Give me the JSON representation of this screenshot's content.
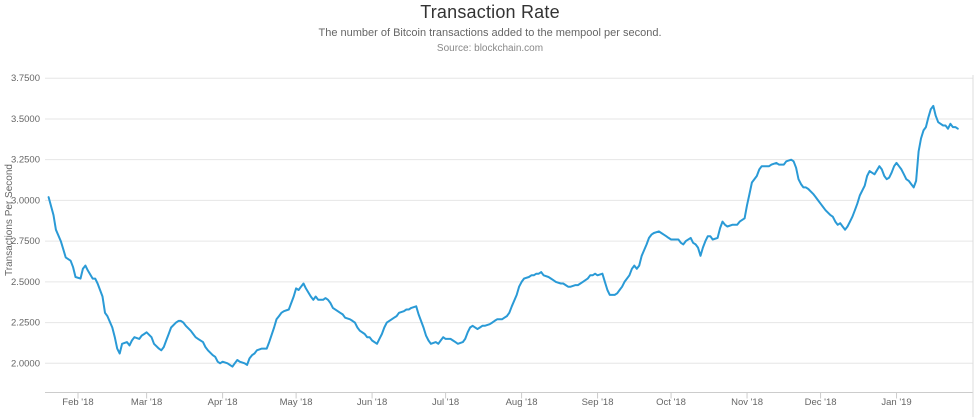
{
  "page": {
    "background": "#ffffff"
  },
  "chart_data": {
    "type": "line",
    "title": "Transaction Rate",
    "subtitle": "The number of Bitcoin transactions added to the mempool per second.",
    "source": "Source: blockchain.com",
    "ylabel": "Transactions Per Second",
    "xlabel": "",
    "legend": "none",
    "grid": "horizontal",
    "colors": {
      "series": "#2a9ad6",
      "gridline": "#e6e6e6",
      "axis_line": "#cccccc",
      "tick_label": "#666666",
      "title": "#333333",
      "subtitle": "#666666",
      "source": "#888888",
      "right_border": "#dddddd"
    },
    "ylim": [
      1.82,
      3.86
    ],
    "y_ticks": [
      "2.0000",
      "2.2500",
      "2.5000",
      "2.7500",
      "3.0000",
      "3.2500",
      "3.5000",
      "3.7500"
    ],
    "x_ticks": [
      {
        "label": "Feb '18",
        "date": "2018-02-01"
      },
      {
        "label": "Mar '18",
        "date": "2018-03-01"
      },
      {
        "label": "Apr '18",
        "date": "2018-04-01"
      },
      {
        "label": "May '18",
        "date": "2018-05-01"
      },
      {
        "label": "Jun '18",
        "date": "2018-06-01"
      },
      {
        "label": "Jul '18",
        "date": "2018-07-01"
      },
      {
        "label": "Aug '18",
        "date": "2018-08-01"
      },
      {
        "label": "Sep '18",
        "date": "2018-09-01"
      },
      {
        "label": "Oct '18",
        "date": "2018-10-01"
      },
      {
        "label": "Nov '18",
        "date": "2018-11-01"
      },
      {
        "label": "Dec '18",
        "date": "2018-12-01"
      },
      {
        "label": "Jan '19",
        "date": "2019-01-01"
      }
    ],
    "points": [
      [
        "2018-01-20",
        3.02
      ],
      [
        "2018-01-22",
        2.91
      ],
      [
        "2018-01-23",
        2.82
      ],
      [
        "2018-01-25",
        2.75
      ],
      [
        "2018-01-26",
        2.7
      ],
      [
        "2018-01-27",
        2.65
      ],
      [
        "2018-01-29",
        2.63
      ],
      [
        "2018-01-30",
        2.59
      ],
      [
        "2018-01-31",
        2.53
      ],
      [
        "2018-02-02",
        2.52
      ],
      [
        "2018-02-03",
        2.58
      ],
      [
        "2018-02-04",
        2.6
      ],
      [
        "2018-02-05",
        2.57
      ],
      [
        "2018-02-07",
        2.52
      ],
      [
        "2018-02-08",
        2.52
      ],
      [
        "2018-02-09",
        2.49
      ],
      [
        "2018-02-11",
        2.41
      ],
      [
        "2018-02-12",
        2.31
      ],
      [
        "2018-02-13",
        2.29
      ],
      [
        "2018-02-15",
        2.22
      ],
      [
        "2018-02-16",
        2.16
      ],
      [
        "2018-02-17",
        2.09
      ],
      [
        "2018-02-18",
        2.06
      ],
      [
        "2018-02-19",
        2.12
      ],
      [
        "2018-02-21",
        2.13
      ],
      [
        "2018-02-22",
        2.11
      ],
      [
        "2018-02-23",
        2.14
      ],
      [
        "2018-02-24",
        2.16
      ],
      [
        "2018-02-26",
        2.15
      ],
      [
        "2018-02-27",
        2.17
      ],
      [
        "2018-02-28",
        2.18
      ],
      [
        "2018-03-01",
        2.19
      ],
      [
        "2018-03-03",
        2.16
      ],
      [
        "2018-03-04",
        2.12
      ],
      [
        "2018-03-06",
        2.09
      ],
      [
        "2018-03-07",
        2.08
      ],
      [
        "2018-03-08",
        2.1
      ],
      [
        "2018-03-09",
        2.14
      ],
      [
        "2018-03-10",
        2.18
      ],
      [
        "2018-03-11",
        2.22
      ],
      [
        "2018-03-13",
        2.25
      ],
      [
        "2018-03-14",
        2.26
      ],
      [
        "2018-03-15",
        2.26
      ],
      [
        "2018-03-16",
        2.25
      ],
      [
        "2018-03-17",
        2.23
      ],
      [
        "2018-03-19",
        2.2
      ],
      [
        "2018-03-20",
        2.18
      ],
      [
        "2018-03-21",
        2.16
      ],
      [
        "2018-03-22",
        2.15
      ],
      [
        "2018-03-24",
        2.13
      ],
      [
        "2018-03-25",
        2.1
      ],
      [
        "2018-03-26",
        2.08
      ],
      [
        "2018-03-28",
        2.05
      ],
      [
        "2018-03-29",
        2.04
      ],
      [
        "2018-03-30",
        2.01
      ],
      [
        "2018-03-31",
        2.0
      ],
      [
        "2018-04-01",
        2.01
      ],
      [
        "2018-04-03",
        2.0
      ],
      [
        "2018-04-04",
        1.99
      ],
      [
        "2018-04-05",
        1.98
      ],
      [
        "2018-04-06",
        2.0
      ],
      [
        "2018-04-07",
        2.02
      ],
      [
        "2018-04-08",
        2.01
      ],
      [
        "2018-04-10",
        2.0
      ],
      [
        "2018-04-11",
        1.99
      ],
      [
        "2018-04-12",
        2.03
      ],
      [
        "2018-04-13",
        2.05
      ],
      [
        "2018-04-14",
        2.06
      ],
      [
        "2018-04-15",
        2.08
      ],
      [
        "2018-04-17",
        2.09
      ],
      [
        "2018-04-18",
        2.09
      ],
      [
        "2018-04-19",
        2.09
      ],
      [
        "2018-04-20",
        2.13
      ],
      [
        "2018-04-22",
        2.22
      ],
      [
        "2018-04-23",
        2.27
      ],
      [
        "2018-04-24",
        2.29
      ],
      [
        "2018-04-25",
        2.31
      ],
      [
        "2018-04-26",
        2.32
      ],
      [
        "2018-04-28",
        2.33
      ],
      [
        "2018-04-30",
        2.41
      ],
      [
        "2018-05-01",
        2.46
      ],
      [
        "2018-05-02",
        2.45
      ],
      [
        "2018-05-03",
        2.47
      ],
      [
        "2018-05-04",
        2.49
      ],
      [
        "2018-05-05",
        2.46
      ],
      [
        "2018-05-07",
        2.41
      ],
      [
        "2018-05-08",
        2.39
      ],
      [
        "2018-05-09",
        2.41
      ],
      [
        "2018-05-10",
        2.39
      ],
      [
        "2018-05-12",
        2.39
      ],
      [
        "2018-05-13",
        2.4
      ],
      [
        "2018-05-14",
        2.39
      ],
      [
        "2018-05-15",
        2.37
      ],
      [
        "2018-05-16",
        2.34
      ],
      [
        "2018-05-18",
        2.32
      ],
      [
        "2018-05-19",
        2.31
      ],
      [
        "2018-05-20",
        2.3
      ],
      [
        "2018-05-21",
        2.28
      ],
      [
        "2018-05-23",
        2.27
      ],
      [
        "2018-05-24",
        2.26
      ],
      [
        "2018-05-25",
        2.25
      ],
      [
        "2018-05-26",
        2.22
      ],
      [
        "2018-05-27",
        2.2
      ],
      [
        "2018-05-29",
        2.18
      ],
      [
        "2018-05-30",
        2.16
      ],
      [
        "2018-05-31",
        2.16
      ],
      [
        "2018-06-01",
        2.14
      ],
      [
        "2018-06-03",
        2.12
      ],
      [
        "2018-06-04",
        2.15
      ],
      [
        "2018-06-05",
        2.18
      ],
      [
        "2018-06-06",
        2.22
      ],
      [
        "2018-06-07",
        2.25
      ],
      [
        "2018-06-09",
        2.27
      ],
      [
        "2018-06-10",
        2.28
      ],
      [
        "2018-06-11",
        2.29
      ],
      [
        "2018-06-12",
        2.31
      ],
      [
        "2018-06-14",
        2.32
      ],
      [
        "2018-06-15",
        2.33
      ],
      [
        "2018-06-16",
        2.33
      ],
      [
        "2018-06-17",
        2.34
      ],
      [
        "2018-06-19",
        2.35
      ],
      [
        "2018-06-20",
        2.3
      ],
      [
        "2018-06-22",
        2.22
      ],
      [
        "2018-06-23",
        2.17
      ],
      [
        "2018-06-24",
        2.14
      ],
      [
        "2018-06-25",
        2.12
      ],
      [
        "2018-06-27",
        2.13
      ],
      [
        "2018-06-28",
        2.12
      ],
      [
        "2018-06-29",
        2.14
      ],
      [
        "2018-06-30",
        2.16
      ],
      [
        "2018-07-01",
        2.15
      ],
      [
        "2018-07-03",
        2.15
      ],
      [
        "2018-07-04",
        2.14
      ],
      [
        "2018-07-05",
        2.13
      ],
      [
        "2018-07-06",
        2.12
      ],
      [
        "2018-07-08",
        2.13
      ],
      [
        "2018-07-09",
        2.15
      ],
      [
        "2018-07-10",
        2.19
      ],
      [
        "2018-07-11",
        2.22
      ],
      [
        "2018-07-12",
        2.23
      ],
      [
        "2018-07-14",
        2.21
      ],
      [
        "2018-07-15",
        2.22
      ],
      [
        "2018-07-16",
        2.23
      ],
      [
        "2018-07-17",
        2.23
      ],
      [
        "2018-07-19",
        2.24
      ],
      [
        "2018-07-20",
        2.25
      ],
      [
        "2018-07-21",
        2.26
      ],
      [
        "2018-07-22",
        2.27
      ],
      [
        "2018-07-24",
        2.27
      ],
      [
        "2018-07-25",
        2.28
      ],
      [
        "2018-07-26",
        2.29
      ],
      [
        "2018-07-27",
        2.31
      ],
      [
        "2018-07-28",
        2.35
      ],
      [
        "2018-07-30",
        2.42
      ],
      [
        "2018-07-31",
        2.47
      ],
      [
        "2018-08-01",
        2.5
      ],
      [
        "2018-08-02",
        2.52
      ],
      [
        "2018-08-04",
        2.53
      ],
      [
        "2018-08-05",
        2.54
      ],
      [
        "2018-08-06",
        2.54
      ],
      [
        "2018-08-07",
        2.55
      ],
      [
        "2018-08-08",
        2.55
      ],
      [
        "2018-08-09",
        2.56
      ],
      [
        "2018-08-10",
        2.54
      ],
      [
        "2018-08-12",
        2.53
      ],
      [
        "2018-08-13",
        2.52
      ],
      [
        "2018-08-14",
        2.51
      ],
      [
        "2018-08-15",
        2.5
      ],
      [
        "2018-08-17",
        2.49
      ],
      [
        "2018-08-18",
        2.49
      ],
      [
        "2018-08-19",
        2.48
      ],
      [
        "2018-08-20",
        2.47
      ],
      [
        "2018-08-21",
        2.47
      ],
      [
        "2018-08-23",
        2.48
      ],
      [
        "2018-08-24",
        2.48
      ],
      [
        "2018-08-25",
        2.49
      ],
      [
        "2018-08-26",
        2.5
      ],
      [
        "2018-08-28",
        2.52
      ],
      [
        "2018-08-29",
        2.54
      ],
      [
        "2018-08-30",
        2.54
      ],
      [
        "2018-08-31",
        2.55
      ],
      [
        "2018-09-01",
        2.54
      ],
      [
        "2018-09-03",
        2.55
      ],
      [
        "2018-09-04",
        2.5
      ],
      [
        "2018-09-05",
        2.45
      ],
      [
        "2018-09-06",
        2.42
      ],
      [
        "2018-09-08",
        2.42
      ],
      [
        "2018-09-09",
        2.43
      ],
      [
        "2018-09-10",
        2.45
      ],
      [
        "2018-09-11",
        2.47
      ],
      [
        "2018-09-12",
        2.5
      ],
      [
        "2018-09-14",
        2.54
      ],
      [
        "2018-09-15",
        2.58
      ],
      [
        "2018-09-16",
        2.6
      ],
      [
        "2018-09-17",
        2.58
      ],
      [
        "2018-09-18",
        2.6
      ],
      [
        "2018-09-19",
        2.66
      ],
      [
        "2018-09-21",
        2.73
      ],
      [
        "2018-09-22",
        2.77
      ],
      [
        "2018-09-23",
        2.79
      ],
      [
        "2018-09-24",
        2.8
      ],
      [
        "2018-09-26",
        2.81
      ],
      [
        "2018-09-27",
        2.8
      ],
      [
        "2018-09-28",
        2.79
      ],
      [
        "2018-09-29",
        2.78
      ],
      [
        "2018-09-30",
        2.77
      ],
      [
        "2018-10-01",
        2.76
      ],
      [
        "2018-10-03",
        2.76
      ],
      [
        "2018-10-04",
        2.76
      ],
      [
        "2018-10-05",
        2.74
      ],
      [
        "2018-10-06",
        2.73
      ],
      [
        "2018-10-07",
        2.75
      ],
      [
        "2018-10-09",
        2.77
      ],
      [
        "2018-10-10",
        2.74
      ],
      [
        "2018-10-11",
        2.73
      ],
      [
        "2018-10-12",
        2.71
      ],
      [
        "2018-10-13",
        2.66
      ],
      [
        "2018-10-14",
        2.71
      ],
      [
        "2018-10-15",
        2.75
      ],
      [
        "2018-10-16",
        2.78
      ],
      [
        "2018-10-17",
        2.78
      ],
      [
        "2018-10-18",
        2.76
      ],
      [
        "2018-10-20",
        2.77
      ],
      [
        "2018-10-21",
        2.83
      ],
      [
        "2018-10-22",
        2.87
      ],
      [
        "2018-10-23",
        2.85
      ],
      [
        "2018-10-24",
        2.84
      ],
      [
        "2018-10-26",
        2.85
      ],
      [
        "2018-10-27",
        2.85
      ],
      [
        "2018-10-28",
        2.85
      ],
      [
        "2018-10-29",
        2.87
      ],
      [
        "2018-10-31",
        2.89
      ],
      [
        "2018-11-01",
        2.97
      ],
      [
        "2018-11-02",
        3.04
      ],
      [
        "2018-11-03",
        3.11
      ],
      [
        "2018-11-05",
        3.15
      ],
      [
        "2018-11-06",
        3.19
      ],
      [
        "2018-11-07",
        3.21
      ],
      [
        "2018-11-08",
        3.21
      ],
      [
        "2018-11-09",
        3.21
      ],
      [
        "2018-11-10",
        3.21
      ],
      [
        "2018-11-11",
        3.22
      ],
      [
        "2018-11-13",
        3.23
      ],
      [
        "2018-11-14",
        3.22
      ],
      [
        "2018-11-15",
        3.22
      ],
      [
        "2018-11-16",
        3.22
      ],
      [
        "2018-11-17",
        3.24
      ],
      [
        "2018-11-19",
        3.25
      ],
      [
        "2018-11-20",
        3.24
      ],
      [
        "2018-11-21",
        3.2
      ],
      [
        "2018-11-22",
        3.13
      ],
      [
        "2018-11-23",
        3.1
      ],
      [
        "2018-11-24",
        3.08
      ],
      [
        "2018-11-25",
        3.08
      ],
      [
        "2018-11-26",
        3.07
      ],
      [
        "2018-11-28",
        3.04
      ],
      [
        "2018-11-29",
        3.02
      ],
      [
        "2018-11-30",
        3.0
      ],
      [
        "2018-12-01",
        2.98
      ],
      [
        "2018-12-02",
        2.96
      ],
      [
        "2018-12-03",
        2.94
      ],
      [
        "2018-12-05",
        2.91
      ],
      [
        "2018-12-06",
        2.9
      ],
      [
        "2018-12-07",
        2.87
      ],
      [
        "2018-12-08",
        2.85
      ],
      [
        "2018-12-09",
        2.86
      ],
      [
        "2018-12-10",
        2.84
      ],
      [
        "2018-12-11",
        2.82
      ],
      [
        "2018-12-12",
        2.84
      ],
      [
        "2018-12-13",
        2.87
      ],
      [
        "2018-12-14",
        2.9
      ],
      [
        "2018-12-15",
        2.94
      ],
      [
        "2018-12-16",
        2.98
      ],
      [
        "2018-12-17",
        3.03
      ],
      [
        "2018-12-19",
        3.09
      ],
      [
        "2018-12-20",
        3.15
      ],
      [
        "2018-12-21",
        3.18
      ],
      [
        "2018-12-22",
        3.17
      ],
      [
        "2018-12-23",
        3.16
      ],
      [
        "2018-12-25",
        3.21
      ],
      [
        "2018-12-26",
        3.19
      ],
      [
        "2018-12-27",
        3.15
      ],
      [
        "2018-12-28",
        3.13
      ],
      [
        "2018-12-29",
        3.14
      ],
      [
        "2018-12-30",
        3.17
      ],
      [
        "2018-12-31",
        3.21
      ],
      [
        "2019-01-01",
        3.23
      ],
      [
        "2019-01-02",
        3.21
      ],
      [
        "2019-01-03",
        3.19
      ],
      [
        "2019-01-04",
        3.16
      ],
      [
        "2019-01-05",
        3.13
      ],
      [
        "2019-01-06",
        3.12
      ],
      [
        "2019-01-07",
        3.1
      ],
      [
        "2019-01-08",
        3.08
      ],
      [
        "2019-01-09",
        3.12
      ],
      [
        "2019-01-10",
        3.3
      ],
      [
        "2019-01-11",
        3.38
      ],
      [
        "2019-01-12",
        3.43
      ],
      [
        "2019-01-13",
        3.45
      ],
      [
        "2019-01-14",
        3.51
      ],
      [
        "2019-01-15",
        3.56
      ],
      [
        "2019-01-16",
        3.58
      ],
      [
        "2019-01-17",
        3.52
      ],
      [
        "2019-01-18",
        3.48
      ],
      [
        "2019-01-19",
        3.47
      ],
      [
        "2019-01-20",
        3.46
      ],
      [
        "2019-01-21",
        3.46
      ],
      [
        "2019-01-22",
        3.44
      ],
      [
        "2019-01-23",
        3.47
      ],
      [
        "2019-01-24",
        3.45
      ],
      [
        "2019-01-25",
        3.45
      ],
      [
        "2019-01-26",
        3.44
      ]
    ]
  }
}
